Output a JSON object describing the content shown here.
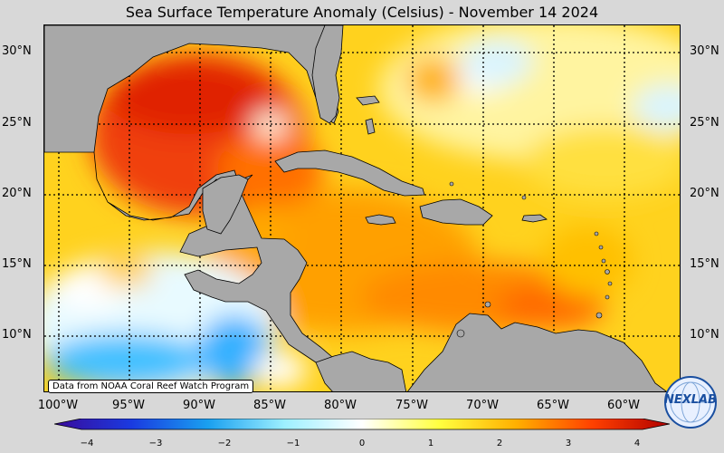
{
  "title": "Sea Surface Temperature Anomaly (Celsius) - November 14 2024",
  "credit": "Data from NOAA Coral Reef Watch Program",
  "logo_text": "NEXLAB",
  "lat_labels": [
    "30°N",
    "25°N",
    "20°N",
    "15°N",
    "10°N"
  ],
  "lon_labels": [
    "100°W",
    "95°W",
    "90°W",
    "85°W",
    "80°W",
    "75°W",
    "70°W",
    "65°W",
    "60°W"
  ],
  "colorbar": {
    "ticks": [
      "−4",
      "−3",
      "−2",
      "−1",
      "0",
      "1",
      "2",
      "3",
      "4"
    ],
    "range": [
      -4,
      4
    ],
    "colors": [
      "#3a0a9a",
      "#1a3ae0",
      "#1aa0f0",
      "#9ef0ff",
      "#ffffff",
      "#ffff40",
      "#ffb000",
      "#ff4000",
      "#b00000"
    ]
  },
  "colors": {
    "land": "#a8a8a8",
    "background": "#d8d8d8"
  }
}
